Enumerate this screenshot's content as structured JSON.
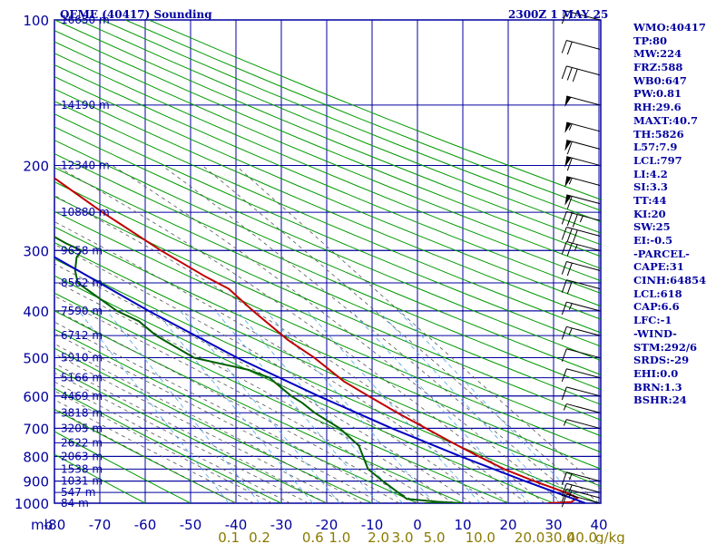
{
  "header": {
    "left_title": "QEME (40417) Sounding",
    "right_title": "2300Z  1 MAY 25"
  },
  "stats": [
    "WMO:40417",
    "TP:80",
    "MW:224",
    "FRZ:588",
    "WB0:647",
    "PW:0.81",
    "RH:29.6",
    "MAXT:40.7",
    "TH:5826",
    "L57:7.9",
    "LCL:797",
    "LI:4.2",
    "SI:3.3",
    "TT:44",
    "KI:20",
    "SW:25",
    "EI:-0.5",
    "-PARCEL-",
    "CAPE:31",
    "CINH:64854",
    "LCL:618",
    "CAP:6.6",
    "LFC:-1",
    "-WIND-",
    "STM:292/6",
    "SRDS:-29",
    "EHI:0.0",
    "BRN:1.3",
    "BSHR:24"
  ],
  "chart_data": {
    "type": "line",
    "diagram": "skew-T log-P",
    "colors": {
      "frame": "#0000a0",
      "grid": "#0000a0",
      "dry_adiabat": "#009900",
      "moist_adiabat": "#555555",
      "mixing_ratio": "#4aa3e8",
      "temperature": "#c00000",
      "dewpoint": "#006000",
      "parcel": "#0000c0",
      "wind_barb": "#000000",
      "tick_label": "#0000a0",
      "mixing_label": "#8a7a00"
    },
    "pressure_axis": {
      "unit_label": "mb",
      "levels": [
        100,
        200,
        300,
        400,
        500,
        600,
        700,
        800,
        900,
        1000
      ],
      "range": [
        100,
        1000
      ],
      "scale": "log"
    },
    "temperature_axis": {
      "ticks": [
        "-80",
        "-70",
        "-60",
        "-50",
        "-40",
        "-30",
        "-20",
        "-10",
        "0",
        "10",
        "20",
        "30",
        "40"
      ],
      "range": [
        -80,
        40
      ]
    },
    "height_labels": [
      {
        "p": 100,
        "label": "16650 m"
      },
      {
        "p": 150,
        "label": "14190 m"
      },
      {
        "p": 200,
        "label": "12340 m"
      },
      {
        "p": 250,
        "label": "10880 m"
      },
      {
        "p": 300,
        "label": "9658 m"
      },
      {
        "p": 350,
        "label": "8562 m"
      },
      {
        "p": 400,
        "label": "7590 m"
      },
      {
        "p": 450,
        "label": "6712 m"
      },
      {
        "p": 500,
        "label": "5910 m"
      },
      {
        "p": 550,
        "label": "5166 m"
      },
      {
        "p": 600,
        "label": "4469 m"
      },
      {
        "p": 650,
        "label": "3818 m"
      },
      {
        "p": 700,
        "label": "3205 m"
      },
      {
        "p": 750,
        "label": "2622 m"
      },
      {
        "p": 800,
        "label": "2063 m"
      },
      {
        "p": 850,
        "label": "1538 m"
      },
      {
        "p": 900,
        "label": "1031 m"
      },
      {
        "p": 950,
        "label": "547 m"
      },
      {
        "p": 1000,
        "label": "84 m"
      }
    ],
    "mixing_ratio_labels": {
      "unit": "g/kg",
      "values": [
        0.1,
        0.2,
        0.6,
        1.0,
        2.0,
        3.0,
        5.0,
        10.0,
        20.0,
        30.0,
        40.0
      ],
      "display": [
        "0.1",
        "0.2",
        "0.6",
        "1.0",
        "2.0",
        "3.0",
        "5.0",
        "10.0",
        "20.0",
        "30.0",
        "40.0"
      ]
    },
    "series": [
      {
        "key": "temperature",
        "points": [
          {
            "p": 1000,
            "t": 28.8
          },
          {
            "p": 995,
            "t": 34.0
          },
          {
            "p": 975,
            "t": 36.0
          },
          {
            "p": 950,
            "t": 34.0
          },
          {
            "p": 900,
            "t": 28.5
          },
          {
            "p": 850,
            "t": 23.5
          },
          {
            "p": 800,
            "t": 19.5
          },
          {
            "p": 750,
            "t": 15.5
          },
          {
            "p": 700,
            "t": 11.5
          },
          {
            "p": 650,
            "t": 7.2
          },
          {
            "p": 600,
            "t": 3.0
          },
          {
            "p": 560,
            "t": -0.5
          },
          {
            "p": 500,
            "t": -4.0
          },
          {
            "p": 460,
            "t": -7.5
          },
          {
            "p": 400,
            "t": -11.5
          },
          {
            "p": 360,
            "t": -14.0
          },
          {
            "p": 340,
            "t": -17.5
          },
          {
            "p": 300,
            "t": -24.0
          },
          {
            "p": 250,
            "t": -32.0
          },
          {
            "p": 200,
            "t": -40.5
          },
          {
            "p": 180,
            "t": -40.0
          },
          {
            "p": 160,
            "t": -48.0
          },
          {
            "p": 130,
            "t": -59.0
          },
          {
            "p": 100,
            "t": -67.0
          }
        ]
      },
      {
        "key": "dewpoint",
        "points": [
          {
            "p": 1000,
            "t": 1.5
          },
          {
            "p": 1000,
            "t": 10.0
          },
          {
            "p": 993,
            "t": 4.5
          },
          {
            "p": 980,
            "t": -1.8
          },
          {
            "p": 900,
            "t": -4.8
          },
          {
            "p": 850,
            "t": -6.5
          },
          {
            "p": 760,
            "t": -5.5
          },
          {
            "p": 700,
            "t": -7.5
          },
          {
            "p": 650,
            "t": -11.0
          },
          {
            "p": 620,
            "t": -12.5
          },
          {
            "p": 600,
            "t": -14.0
          },
          {
            "p": 550,
            "t": -16.5
          },
          {
            "p": 530,
            "t": -20.0
          },
          {
            "p": 500,
            "t": -30.5
          },
          {
            "p": 450,
            "t": -36.0
          },
          {
            "p": 420,
            "t": -38.0
          },
          {
            "p": 400,
            "t": -41.5
          },
          {
            "p": 350,
            "t": -46.5
          },
          {
            "p": 330,
            "t": -45.5
          },
          {
            "p": 310,
            "t": -43.5
          },
          {
            "p": 300,
            "t": -41.5
          },
          {
            "p": 290,
            "t": -44.0
          },
          {
            "p": 270,
            "t": -48.0
          },
          {
            "p": 250,
            "t": -48.0
          },
          {
            "p": 245,
            "t": -44.0
          },
          {
            "p": 220,
            "t": -52.0
          },
          {
            "p": 210,
            "t": -65.0
          },
          {
            "p": 200,
            "t": -72.0
          },
          {
            "p": 180,
            "t": -80.0
          }
        ]
      },
      {
        "key": "parcel",
        "points": [
          {
            "p": 1000,
            "t": 37.0
          },
          {
            "p": 900,
            "t": 26.5
          },
          {
            "p": 800,
            "t": 15.5
          },
          {
            "p": 700,
            "t": 4.0
          },
          {
            "p": 600,
            "t": -8.0
          },
          {
            "p": 500,
            "t": -21.0
          },
          {
            "p": 400,
            "t": -34.5
          },
          {
            "p": 300,
            "t": -50.0
          },
          {
            "p": 250,
            "t": -59.0
          },
          {
            "p": 200,
            "t": -69.0
          },
          {
            "p": 150,
            "t": -80.0
          }
        ]
      }
    ],
    "wind_profile": [
      {
        "p": 100,
        "speed": 15
      },
      {
        "p": 115,
        "speed": 20
      },
      {
        "p": 130,
        "speed": 30
      },
      {
        "p": 150,
        "speed": 50
      },
      {
        "p": 170,
        "speed": 55
      },
      {
        "p": 185,
        "speed": 60
      },
      {
        "p": 200,
        "speed": 60
      },
      {
        "p": 220,
        "speed": 55
      },
      {
        "p": 240,
        "speed": 60
      },
      {
        "p": 260,
        "speed": 35
      },
      {
        "p": 280,
        "speed": 30
      },
      {
        "p": 300,
        "speed": 25
      },
      {
        "p": 330,
        "speed": 20
      },
      {
        "p": 360,
        "speed": 20
      },
      {
        "p": 400,
        "speed": 15
      },
      {
        "p": 450,
        "speed": 15
      },
      {
        "p": 500,
        "speed": 10
      },
      {
        "p": 550,
        "speed": 10
      },
      {
        "p": 600,
        "speed": 10
      },
      {
        "p": 650,
        "speed": 5
      },
      {
        "p": 700,
        "speed": 5
      },
      {
        "p": 900,
        "speed": 15
      },
      {
        "p": 950,
        "speed": 15
      },
      {
        "p": 975,
        "speed": 15
      },
      {
        "p": 1000,
        "speed": 10
      }
    ]
  }
}
